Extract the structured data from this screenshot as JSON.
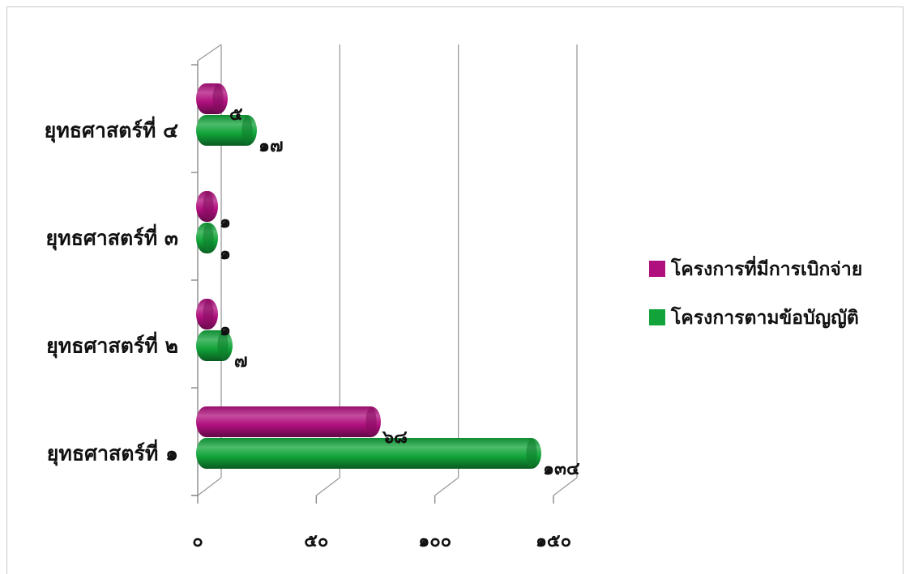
{
  "chart_data": {
    "type": "bar",
    "orientation": "horizontal",
    "style": "3d-cylinder",
    "categories": [
      "ยุทธศาสตร์ที่ ๑",
      "ยุทธศาสตร์ที่ ๒",
      "ยุทธศาสตร์ที่ ๓",
      "ยุทธศาสตร์ที่ ๔"
    ],
    "series": [
      {
        "name": "โครงการที่มีการเบิกจ่าย",
        "color": "#b0107e",
        "values": [
          68,
          1,
          1,
          5
        ],
        "labels": [
          "๖๘",
          "๑",
          "๑",
          "๕"
        ]
      },
      {
        "name": "โครงการตามข้อบัญญัติ",
        "color": "#12a43a",
        "values": [
          134,
          7,
          1,
          17
        ],
        "labels": [
          "๑๓๔",
          "๗",
          "๑",
          "๑๗"
        ]
      }
    ],
    "x_ticks": [
      0,
      50,
      100,
      150
    ],
    "x_tick_labels": [
      "๐",
      "๕๐",
      "๑๐๐",
      "๑๕๐"
    ],
    "xlim": [
      0,
      150
    ],
    "grid": true,
    "legend": "right",
    "title": "",
    "xlabel": "",
    "ylabel": ""
  }
}
